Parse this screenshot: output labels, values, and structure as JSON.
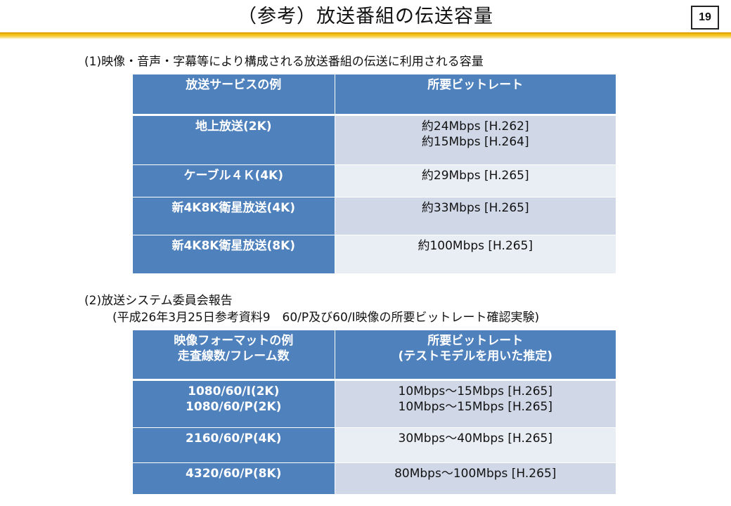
{
  "header": {
    "title": "（参考）放送番組の伝送容量",
    "page_number": "19"
  },
  "section1": {
    "title": "(1)映像・音声・字幕等により構成される放送番組の伝送に利用される容量",
    "headers": [
      "放送サービスの例",
      "所要ビットレート"
    ],
    "rows": [
      {
        "service": "地上放送(2K)",
        "bitrate": "約24Mbps [H.262]\n約15Mbps [H.264]"
      },
      {
        "service": "ケーブル４Ｋ(4K)",
        "bitrate": "約29Mbps [H.265]"
      },
      {
        "service": "新4K8K衛星放送(4K)",
        "bitrate": "約33Mbps [H.265]"
      },
      {
        "service": "新4K8K衛星放送(8K)",
        "bitrate": "約100Mbps [H.265]"
      }
    ]
  },
  "section2": {
    "title": "(2)放送システム委員会報告",
    "subtitle": "(平成26年3月25日参考資料9　60/P及び60/I映像の所要ビットレート確認実験)",
    "headers": [
      "映像フォーマットの例\n走査線数/フレーム数",
      "所要ビットレート\n(テストモデルを用いた推定)"
    ],
    "rows": [
      {
        "format": "1080/60/I(2K)\n1080/60/P(2K)",
        "bitrate": "10Mbps～15Mbps [H.265]\n10Mbps～15Mbps [H.265]"
      },
      {
        "format": "2160/60/P(4K)",
        "bitrate": "30Mbps～40Mbps [H.265]"
      },
      {
        "format": "4320/60/P(8K)",
        "bitrate": "80Mbps～100Mbps [H.265]"
      }
    ]
  },
  "colors": {
    "header_blue": "#4f81bd",
    "row_light": "#d0d8e8",
    "row_lighter": "#e9edf4",
    "accent_gold": "#f1b700"
  }
}
